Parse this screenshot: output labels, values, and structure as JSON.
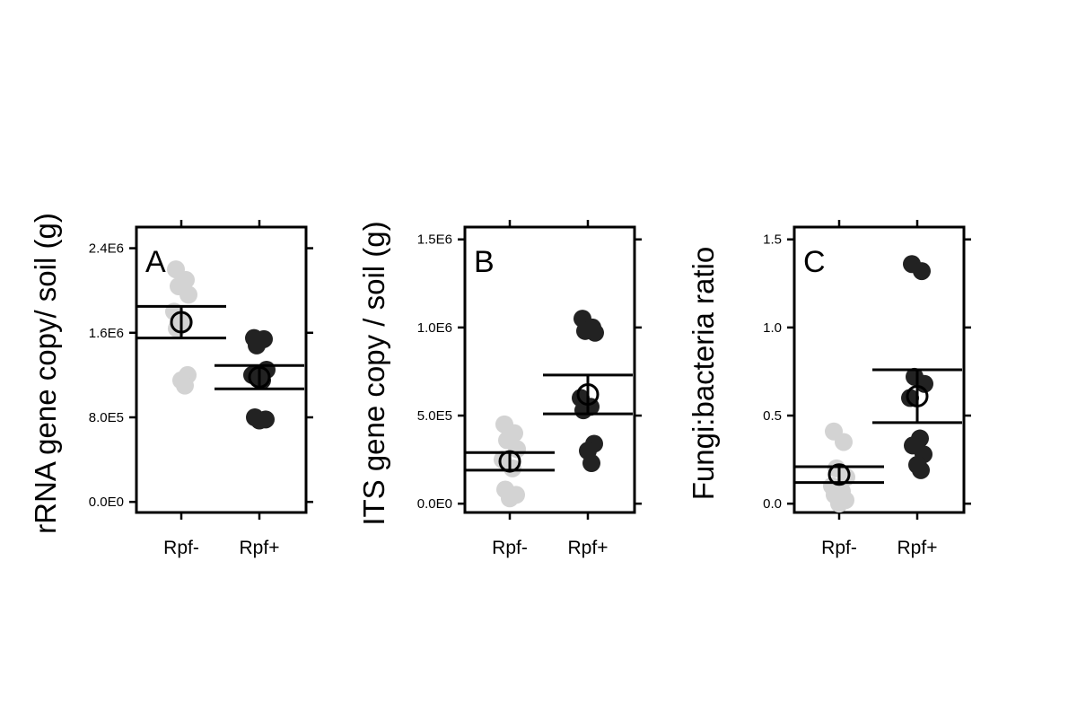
{
  "colors": {
    "rpf_minus": "#d3d3d3",
    "rpf_plus": "#222222",
    "frame": "#000000",
    "mean_marker": "#000000"
  },
  "chart_data": [
    {
      "type": "scatter",
      "panel_label": "A",
      "ylabel": "rRNA gene copy/ soil (g)",
      "categories": [
        "Rpf-",
        "Rpf+"
      ],
      "yticks": [
        0,
        800000,
        1600000,
        2400000
      ],
      "yticklabels": [
        "0.0E0",
        "8.0E5",
        "1.6E6",
        "2.4E6"
      ],
      "ylim": [
        -100000,
        2600000
      ],
      "series": [
        {
          "category": "Rpf-",
          "values": [
            2200000,
            2100000,
            2040000,
            1960000,
            1800000,
            1700000,
            1640000,
            1200000,
            1150000,
            1100000
          ]
        },
        {
          "category": "Rpf+",
          "values": [
            1550000,
            1540000,
            1480000,
            1250000,
            1200000,
            1150000,
            800000,
            780000,
            770000
          ]
        }
      ],
      "means": [
        1700000,
        1180000
      ],
      "errors": [
        150000,
        110000
      ]
    },
    {
      "type": "scatter",
      "panel_label": "B",
      "ylabel": "ITS gene copy / soil (g)",
      "categories": [
        "Rpf-",
        "Rpf+"
      ],
      "yticks": [
        0,
        500000,
        1000000,
        1500000
      ],
      "yticklabels": [
        "0.0E0",
        "5.0E5",
        "1.0E6",
        "1.5E6"
      ],
      "ylim": [
        -50000,
        1570000
      ],
      "series": [
        {
          "category": "Rpf-",
          "values": [
            450000,
            400000,
            360000,
            310000,
            250000,
            200000,
            80000,
            50000,
            30000
          ]
        },
        {
          "category": "Rpf+",
          "values": [
            1050000,
            1000000,
            980000,
            970000,
            600000,
            550000,
            530000,
            340000,
            300000,
            230000
          ]
        }
      ],
      "means": [
        240000,
        620000
      ],
      "errors": [
        50000,
        110000
      ]
    },
    {
      "type": "scatter",
      "panel_label": "C",
      "ylabel": "Fungi:bacteria ratio",
      "categories": [
        "Rpf-",
        "Rpf+"
      ],
      "yticks": [
        0.0,
        0.5,
        1.0,
        1.5
      ],
      "yticklabels": [
        "0.0",
        "0.5",
        "1.0",
        "1.5"
      ],
      "ylim": [
        -0.05,
        1.57
      ],
      "series": [
        {
          "category": "Rpf-",
          "values": [
            0.41,
            0.35,
            0.2,
            0.15,
            0.1,
            0.07,
            0.05,
            0.02,
            0.0
          ]
        },
        {
          "category": "Rpf+",
          "values": [
            1.36,
            1.32,
            0.72,
            0.68,
            0.6,
            0.37,
            0.33,
            0.28,
            0.22,
            0.19
          ]
        }
      ],
      "means": [
        0.165,
        0.61
      ],
      "errors": [
        0.045,
        0.15
      ]
    }
  ]
}
